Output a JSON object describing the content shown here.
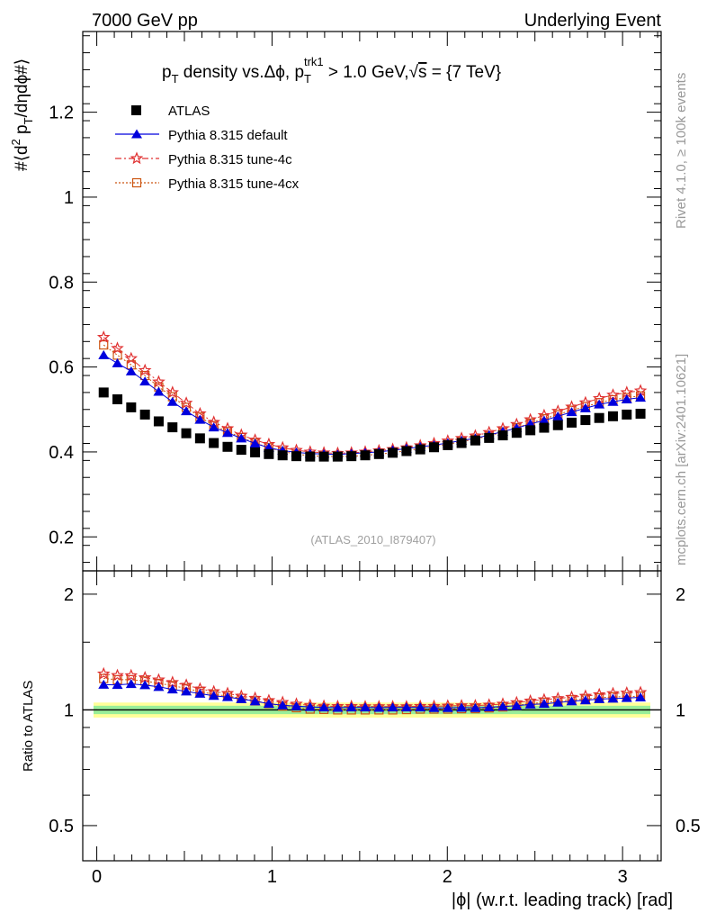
{
  "header": {
    "left": "7000 GeV pp",
    "right": "Underlying Event"
  },
  "side_labels": {
    "rivet": "Rivet 4.1.0, ≥ 100k events",
    "mcplots": "mcplots.cern.ch [arXiv:2401.10621]"
  },
  "chart_data": [
    {
      "type": "scatter",
      "title": "p_T density vs. Δφ, p_T^trk1 > 1.0 GeV, √s = {7 TeV}",
      "title_parts": {
        "p": "p",
        "T": "T",
        "density": " density vs.Δϕ, p",
        "trk1": "trk1",
        "cut": " > 1.0 GeV,",
        "sqrt": "√",
        "s": "s",
        "energy": " = {7 TeV}"
      },
      "ylabel": "#⟨d² p_T/dηdϕ#⟩",
      "ylabel_parts": {
        "a": "#⟨d",
        "two": "2",
        "b": " p",
        "T": "T",
        "c": "/dηdϕ#⟩"
      },
      "xlim": [
        -0.08,
        3.22
      ],
      "ylim": [
        0.12,
        1.39
      ],
      "yticks": [
        0.2,
        0.4,
        0.6,
        0.8,
        1,
        1.2
      ],
      "ytick_labels": [
        "0.2",
        "0.4",
        "0.6",
        "0.8",
        "1",
        "1.2"
      ],
      "watermark": "(ATLAS_2010_I879407)",
      "legend": [
        {
          "name": "ATLAS",
          "color": "#000000",
          "marker": "square-filled"
        },
        {
          "name": "Pythia 8.315 default",
          "color": "#0000dd",
          "marker": "triangle-filled"
        },
        {
          "name": "Pythia 8.315 tune-4c",
          "color": "#e03030",
          "marker": "star-open"
        },
        {
          "name": "Pythia 8.315 tune-4cx",
          "color": "#cc5511",
          "marker": "square-open"
        }
      ],
      "x": [
        0.0393,
        0.1178,
        0.1963,
        0.2749,
        0.3534,
        0.432,
        0.5105,
        0.589,
        0.6676,
        0.7461,
        0.8247,
        0.9032,
        0.9817,
        1.0603,
        1.1388,
        1.2174,
        1.2959,
        1.3744,
        1.453,
        1.5315,
        1.6101,
        1.6886,
        1.7671,
        1.8457,
        1.9242,
        2.0028,
        2.0813,
        2.1598,
        2.2384,
        2.3169,
        2.3955,
        2.474,
        2.5525,
        2.6311,
        2.7096,
        2.7882,
        2.8667,
        2.9452,
        3.0238,
        3.1023
      ],
      "series": [
        {
          "name": "ATLAS",
          "values": [
            0.54,
            0.524,
            0.505,
            0.488,
            0.472,
            0.458,
            0.444,
            0.432,
            0.421,
            0.412,
            0.405,
            0.399,
            0.395,
            0.392,
            0.39,
            0.389,
            0.389,
            0.389,
            0.39,
            0.392,
            0.395,
            0.398,
            0.402,
            0.406,
            0.411,
            0.416,
            0.421,
            0.427,
            0.433,
            0.439,
            0.445,
            0.451,
            0.457,
            0.463,
            0.469,
            0.475,
            0.48,
            0.484,
            0.488,
            0.49
          ]
        },
        {
          "name": "Pythia 8.315 default",
          "values": [
            0.628,
            0.609,
            0.59,
            0.566,
            0.542,
            0.518,
            0.496,
            0.476,
            0.458,
            0.445,
            0.432,
            0.42,
            0.41,
            0.403,
            0.399,
            0.396,
            0.395,
            0.394,
            0.396,
            0.398,
            0.4,
            0.404,
            0.408,
            0.412,
            0.416,
            0.421,
            0.427,
            0.432,
            0.44,
            0.448,
            0.456,
            0.466,
            0.474,
            0.484,
            0.494,
            0.503,
            0.512,
            0.518,
            0.524,
            0.528
          ]
        },
        {
          "name": "Pythia 8.315 tune-4c",
          "values": [
            0.67,
            0.644,
            0.62,
            0.592,
            0.565,
            0.54,
            0.515,
            0.49,
            0.47,
            0.455,
            0.44,
            0.428,
            0.418,
            0.41,
            0.404,
            0.4,
            0.398,
            0.397,
            0.398,
            0.4,
            0.403,
            0.406,
            0.41,
            0.415,
            0.42,
            0.426,
            0.432,
            0.438,
            0.446,
            0.455,
            0.465,
            0.476,
            0.486,
            0.496,
            0.506,
            0.516,
            0.526,
            0.534,
            0.54,
            0.544
          ]
        },
        {
          "name": "Pythia 8.315 tune-4cx",
          "values": [
            0.652,
            0.628,
            0.605,
            0.58,
            0.553,
            0.53,
            0.505,
            0.482,
            0.462,
            0.448,
            0.434,
            0.421,
            0.41,
            0.401,
            0.395,
            0.391,
            0.39,
            0.389,
            0.39,
            0.392,
            0.395,
            0.398,
            0.403,
            0.408,
            0.413,
            0.418,
            0.424,
            0.43,
            0.438,
            0.447,
            0.457,
            0.468,
            0.478,
            0.488,
            0.498,
            0.507,
            0.516,
            0.523,
            0.528,
            0.532
          ]
        }
      ]
    },
    {
      "type": "scatter",
      "title": "",
      "ylabel": "Ratio to ATLAS",
      "xlabel": "|ϕ| (w.r.t. leading track) [rad]",
      "scale": "log",
      "xlim": [
        -0.08,
        3.22
      ],
      "ylim": [
        0.405,
        2.3
      ],
      "xticks": [
        0,
        1,
        2,
        3
      ],
      "xtick_labels": [
        "0",
        "1",
        "2",
        "3"
      ],
      "yticks": [
        0.5,
        1,
        2
      ],
      "ytick_labels": [
        "0.5",
        "1",
        "2"
      ],
      "bands": [
        {
          "name": "ATLAS total uncertainty",
          "low": 0.955,
          "high": 1.045,
          "color": "#ffff99"
        },
        {
          "name": "ATLAS stat uncertainty",
          "low": 0.975,
          "high": 1.025,
          "color": "#99ee99"
        }
      ],
      "series": [
        {
          "name": "Pythia 8.315 default",
          "values": [
            1.163,
            1.162,
            1.168,
            1.16,
            1.148,
            1.131,
            1.117,
            1.102,
            1.088,
            1.08,
            1.067,
            1.053,
            1.038,
            1.028,
            1.023,
            1.018,
            1.015,
            1.013,
            1.015,
            1.015,
            1.013,
            1.015,
            1.015,
            1.015,
            1.012,
            1.012,
            1.014,
            1.012,
            1.016,
            1.021,
            1.025,
            1.033,
            1.037,
            1.045,
            1.053,
            1.059,
            1.067,
            1.07,
            1.074,
            1.078
          ]
        },
        {
          "name": "Pythia 8.315 tune-4c",
          "values": [
            1.241,
            1.229,
            1.228,
            1.213,
            1.197,
            1.179,
            1.16,
            1.134,
            1.116,
            1.104,
            1.086,
            1.073,
            1.058,
            1.046,
            1.036,
            1.028,
            1.023,
            1.021,
            1.021,
            1.02,
            1.02,
            1.02,
            1.02,
            1.022,
            1.022,
            1.024,
            1.026,
            1.026,
            1.03,
            1.036,
            1.045,
            1.055,
            1.063,
            1.071,
            1.079,
            1.086,
            1.096,
            1.103,
            1.107,
            1.11
          ]
        },
        {
          "name": "Pythia 8.315 tune-4cx",
          "values": [
            1.207,
            1.198,
            1.198,
            1.189,
            1.172,
            1.157,
            1.137,
            1.116,
            1.097,
            1.087,
            1.072,
            1.055,
            1.038,
            1.023,
            1.013,
            1.005,
            1.003,
            1.0,
            1.0,
            1.0,
            1.0,
            1.0,
            1.002,
            1.005,
            1.005,
            1.005,
            1.007,
            1.007,
            1.012,
            1.018,
            1.027,
            1.038,
            1.046,
            1.054,
            1.062,
            1.067,
            1.075,
            1.081,
            1.082,
            1.086
          ]
        }
      ]
    }
  ]
}
